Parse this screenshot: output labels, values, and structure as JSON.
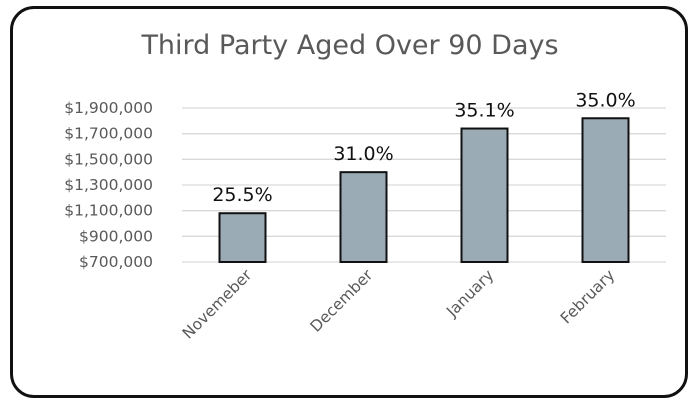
{
  "chart_data": {
    "type": "bar",
    "title": "Third Party Aged Over 90 Days",
    "categories": [
      "Novemeber",
      "December",
      "January",
      "February"
    ],
    "values": [
      1080000,
      1400000,
      1740000,
      1820000
    ],
    "data_labels": [
      "25.5%",
      "31.0%",
      "35.1%",
      "35.0%"
    ],
    "yticks": [
      {
        "value": 700000,
        "label": "$700,000"
      },
      {
        "value": 900000,
        "label": "$900,000"
      },
      {
        "value": 1100000,
        "label": "$1,100,000"
      },
      {
        "value": 1300000,
        "label": "$1,300,000"
      },
      {
        "value": 1500000,
        "label": "$1,500,000"
      },
      {
        "value": 1700000,
        "label": "$1,700,000"
      },
      {
        "value": 1900000,
        "label": "$1,900,000"
      }
    ],
    "ylim": [
      700000,
      1900000
    ],
    "xlabel": "",
    "ylabel": "",
    "grid": true,
    "legend": "none",
    "colors": {
      "bar_fill": "#9aabb6",
      "bar_stroke": "#111111",
      "grid": "#d9d9d9",
      "text": "#595959"
    }
  }
}
